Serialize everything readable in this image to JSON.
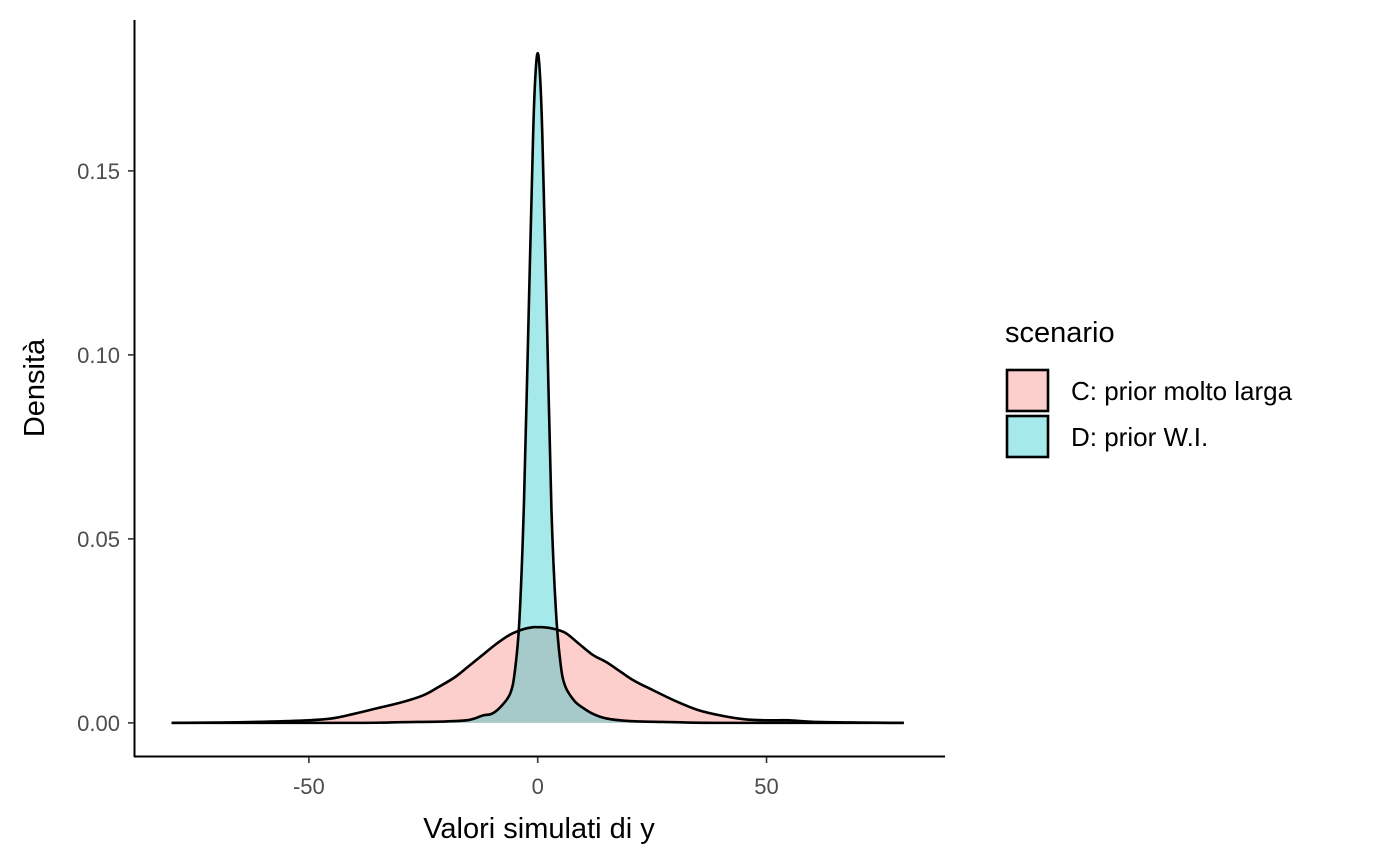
{
  "chart_data": {
    "type": "area",
    "xlabel": "Valori simulati di y",
    "ylabel": "Densità",
    "xlim": [
      -88,
      89
    ],
    "ylim": [
      -0.009,
      0.191
    ],
    "xticks": [
      -50,
      0,
      50
    ],
    "xtick_labels": [
      "-50",
      "0",
      "50"
    ],
    "yticks": [
      0,
      0.05,
      0.1,
      0.15
    ],
    "ytick_labels": [
      "0.00",
      "0.05",
      "0.10",
      "0.15"
    ],
    "grid": false,
    "legend": {
      "title": "scenario",
      "position": "right"
    },
    "series": [
      {
        "name": "C: prior molto larga",
        "fill": "#F8766D",
        "x": [
          -80,
          -70,
          -60,
          -50,
          -45,
          -40,
          -35,
          -30,
          -25,
          -22,
          -18,
          -15,
          -12,
          -9,
          -6,
          -3,
          -1,
          0,
          1,
          3,
          6,
          9,
          12,
          15,
          18,
          21,
          25,
          30,
          35,
          40,
          45,
          50,
          55,
          60,
          70,
          80
        ],
        "y": [
          0.0,
          0.0001,
          0.0003,
          0.0007,
          0.0012,
          0.0025,
          0.004,
          0.0055,
          0.0075,
          0.0095,
          0.0125,
          0.0155,
          0.0185,
          0.0215,
          0.024,
          0.0255,
          0.026,
          0.026,
          0.026,
          0.0257,
          0.0245,
          0.0215,
          0.0185,
          0.0165,
          0.014,
          0.0115,
          0.009,
          0.006,
          0.0035,
          0.002,
          0.001,
          0.0007,
          0.0007,
          0.0003,
          0.0001,
          0.0
        ]
      },
      {
        "name": "D: prior W.I.",
        "fill": "#00BFC4",
        "x": [
          -80,
          -40,
          -30,
          -20,
          -15,
          -12,
          -10,
          -8,
          -6,
          -5,
          -4,
          -3,
          -2,
          -1,
          -0.5,
          0,
          0.5,
          1,
          2,
          3,
          4,
          5,
          6,
          8,
          10,
          12,
          15,
          20,
          30,
          40,
          80
        ],
        "y": [
          0.0,
          0.0,
          0.0002,
          0.0004,
          0.0008,
          0.002,
          0.0025,
          0.0045,
          0.008,
          0.014,
          0.028,
          0.06,
          0.11,
          0.16,
          0.176,
          0.182,
          0.176,
          0.16,
          0.11,
          0.058,
          0.03,
          0.016,
          0.01,
          0.006,
          0.004,
          0.0025,
          0.0012,
          0.0005,
          0.0002,
          0.0,
          0.0
        ]
      }
    ]
  }
}
